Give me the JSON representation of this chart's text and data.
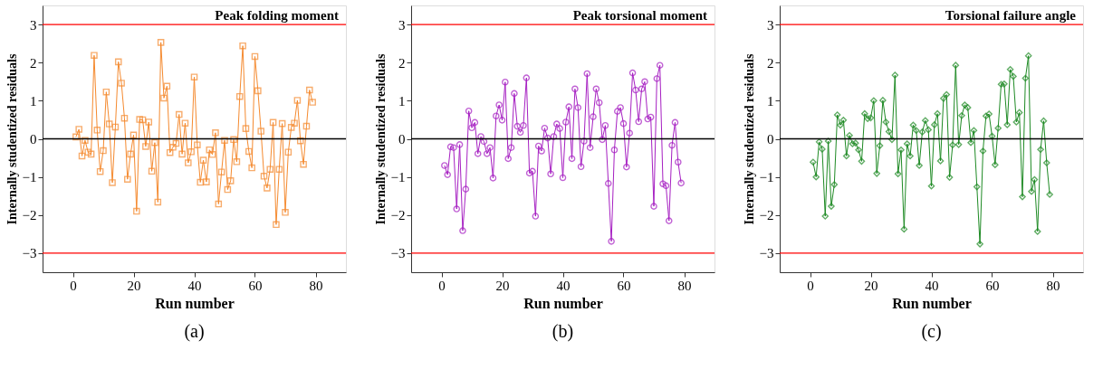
{
  "chart_data": [
    {
      "type": "line",
      "title": "Peak folding moment",
      "xlabel": "Run number",
      "ylabel": "Internally studentized residuals",
      "annotations": [
        "(a)"
      ],
      "marker": "square",
      "line_style": "solid",
      "grid": false,
      "x": [
        1,
        2,
        3,
        4,
        5,
        6,
        7,
        8,
        9,
        10,
        11,
        12,
        13,
        14,
        15,
        16,
        17,
        18,
        19,
        20,
        21,
        22,
        23,
        24,
        25,
        26,
        27,
        28,
        29,
        30,
        31,
        32,
        33,
        34,
        35,
        36,
        37,
        38,
        39,
        40,
        41,
        42,
        43,
        44,
        45,
        46,
        47,
        48,
        49,
        50,
        51,
        52,
        53,
        54,
        55,
        56,
        57,
        58,
        59,
        60,
        61,
        62,
        63,
        64,
        65,
        66,
        67,
        68,
        69,
        70,
        71,
        72,
        73,
        74,
        75,
        76,
        77,
        78,
        79
      ],
      "series": [
        {
          "color": "#f58a2f",
          "values": [
            0.05,
            0.25,
            -0.45,
            -0.04,
            -0.35,
            -0.4,
            2.19,
            0.23,
            -0.86,
            -0.31,
            1.23,
            0.39,
            -1.15,
            0.31,
            2.02,
            1.46,
            0.54,
            -1.06,
            -0.4,
            0.1,
            -1.9,
            0.51,
            0.5,
            -0.2,
            0.44,
            -0.85,
            -0.1,
            -1.66,
            2.53,
            1.07,
            1.38,
            -0.36,
            -0.22,
            -0.12,
            0.64,
            -0.4,
            0.41,
            -0.63,
            -0.34,
            1.62,
            -0.16,
            -1.14,
            -0.56,
            -1.13,
            -0.29,
            -0.41,
            0.16,
            -1.71,
            -0.87,
            -0.04,
            -1.33,
            -1.1,
            -0.02,
            -0.6,
            1.11,
            2.44,
            0.27,
            -0.33,
            -0.76,
            2.16,
            1.26,
            0.2,
            -0.98,
            -1.29,
            -0.8,
            0.43,
            -2.25,
            -0.8,
            0.4,
            -1.93,
            -0.35,
            0.3,
            0.41,
            1.01,
            -0.05,
            -0.67,
            0.33,
            1.28,
            0.96
          ]
        }
      ],
      "xlim": [
        -10,
        90
      ],
      "xticks": [
        0,
        20,
        40,
        60,
        80
      ],
      "ylim": [
        -3.5,
        3.5
      ],
      "yticks": [
        -3,
        -2,
        -1,
        0,
        1,
        2,
        3
      ],
      "ref_lines": [
        {
          "axis": "y",
          "value": 3,
          "color": "#ff0000"
        },
        {
          "axis": "y",
          "value": -3,
          "color": "#ff0000"
        },
        {
          "axis": "y",
          "value": 0,
          "color": "#000000"
        }
      ]
    },
    {
      "type": "line",
      "title": "Peak torsional moment",
      "xlabel": "Run number",
      "ylabel": "Internally studentized residuals",
      "annotations": [
        "(b)"
      ],
      "marker": "circle",
      "line_style": "solid",
      "grid": false,
      "x": [
        1,
        2,
        3,
        4,
        5,
        6,
        7,
        8,
        9,
        10,
        11,
        12,
        13,
        14,
        15,
        16,
        17,
        18,
        19,
        20,
        21,
        22,
        23,
        24,
        25,
        26,
        27,
        28,
        29,
        30,
        31,
        32,
        33,
        34,
        35,
        36,
        37,
        38,
        39,
        40,
        41,
        42,
        43,
        44,
        45,
        46,
        47,
        48,
        49,
        50,
        51,
        52,
        53,
        54,
        55,
        56,
        57,
        58,
        59,
        60,
        61,
        62,
        63,
        64,
        65,
        66,
        67,
        68,
        69,
        70,
        71,
        72,
        73,
        74,
        75,
        76,
        77,
        78,
        79
      ],
      "series": [
        {
          "color": "#a61fc2",
          "values": [
            -0.7,
            -0.94,
            -0.21,
            -0.23,
            -1.84,
            -0.15,
            -2.41,
            -1.32,
            0.73,
            0.29,
            0.43,
            -0.39,
            0.06,
            -0.07,
            -0.39,
            -0.23,
            -1.03,
            0.6,
            0.89,
            0.49,
            1.49,
            -0.52,
            -0.23,
            1.19,
            0.33,
            0.17,
            0.35,
            1.6,
            -0.9,
            -0.85,
            -2.03,
            -0.19,
            -0.32,
            0.28,
            0.02,
            -0.92,
            0.06,
            0.39,
            0.27,
            -1.02,
            0.44,
            0.84,
            -0.52,
            1.31,
            0.82,
            -0.73,
            -0.06,
            1.71,
            -0.23,
            0.58,
            1.31,
            0.95,
            -0.02,
            0.35,
            -1.17,
            -2.69,
            -0.29,
            0.72,
            0.82,
            0.4,
            -0.74,
            0.15,
            1.73,
            1.28,
            0.45,
            1.31,
            1.5,
            0.52,
            0.57,
            -1.77,
            1.58,
            1.93,
            -1.18,
            -1.23,
            -2.15,
            -0.17,
            0.43,
            -0.61,
            -1.16
          ]
        }
      ],
      "xlim": [
        -10,
        90
      ],
      "xticks": [
        0,
        20,
        40,
        60,
        80
      ],
      "ylim": [
        -3.5,
        3.5
      ],
      "yticks": [
        -3,
        -2,
        -1,
        0,
        1,
        2,
        3
      ],
      "ref_lines": [
        {
          "axis": "y",
          "value": 3,
          "color": "#ff0000"
        },
        {
          "axis": "y",
          "value": -3,
          "color": "#ff0000"
        },
        {
          "axis": "y",
          "value": 0,
          "color": "#000000"
        }
      ]
    },
    {
      "type": "line",
      "title": "Torsional failure angle",
      "xlabel": "Run number",
      "ylabel": "Internally studentized residuals",
      "annotations": [
        "(c)"
      ],
      "marker": "diamond",
      "line_style": "solid",
      "grid": false,
      "x": [
        1,
        2,
        3,
        4,
        5,
        6,
        7,
        8,
        9,
        10,
        11,
        12,
        13,
        14,
        15,
        16,
        17,
        18,
        19,
        20,
        21,
        22,
        23,
        24,
        25,
        26,
        27,
        28,
        29,
        30,
        31,
        32,
        33,
        34,
        35,
        36,
        37,
        38,
        39,
        40,
        41,
        42,
        43,
        44,
        45,
        46,
        47,
        48,
        49,
        50,
        51,
        52,
        53,
        54,
        55,
        56,
        57,
        58,
        59,
        60,
        61,
        62,
        63,
        64,
        65,
        66,
        67,
        68,
        69,
        70,
        71,
        72,
        73,
        74,
        75,
        76,
        77,
        78,
        79
      ],
      "series": [
        {
          "color": "#1e8a24",
          "values": [
            -0.61,
            -1.0,
            -0.08,
            -0.27,
            -2.03,
            -0.06,
            -1.77,
            -1.2,
            0.63,
            0.36,
            0.49,
            -0.45,
            0.09,
            -0.13,
            -0.11,
            -0.29,
            -0.59,
            0.66,
            0.53,
            0.55,
            1.0,
            -0.91,
            -0.18,
            1.01,
            0.44,
            0.19,
            -0.02,
            1.67,
            -0.92,
            -0.29,
            -2.37,
            -0.13,
            -0.45,
            0.36,
            0.22,
            -0.7,
            0.18,
            0.48,
            0.24,
            -1.24,
            0.37,
            0.66,
            -0.58,
            1.06,
            1.16,
            -1.01,
            -0.16,
            1.93,
            -0.15,
            0.61,
            0.89,
            0.82,
            -0.1,
            0.22,
            -1.26,
            -2.76,
            -0.32,
            0.6,
            0.65,
            0.07,
            -0.68,
            0.28,
            1.43,
            1.44,
            0.37,
            1.82,
            1.64,
            0.44,
            0.69,
            -1.52,
            1.59,
            2.18,
            -1.38,
            -1.07,
            -2.43,
            -0.28,
            0.47,
            -0.63,
            -1.46
          ]
        }
      ],
      "xlim": [
        -10,
        90
      ],
      "xticks": [
        0,
        20,
        40,
        60,
        80
      ],
      "ylim": [
        -3.5,
        3.5
      ],
      "yticks": [
        -3,
        -2,
        -1,
        0,
        1,
        2,
        3
      ],
      "ref_lines": [
        {
          "axis": "y",
          "value": 3,
          "color": "#ff0000"
        },
        {
          "axis": "y",
          "value": -3,
          "color": "#ff0000"
        },
        {
          "axis": "y",
          "value": 0,
          "color": "#000000"
        }
      ]
    }
  ]
}
